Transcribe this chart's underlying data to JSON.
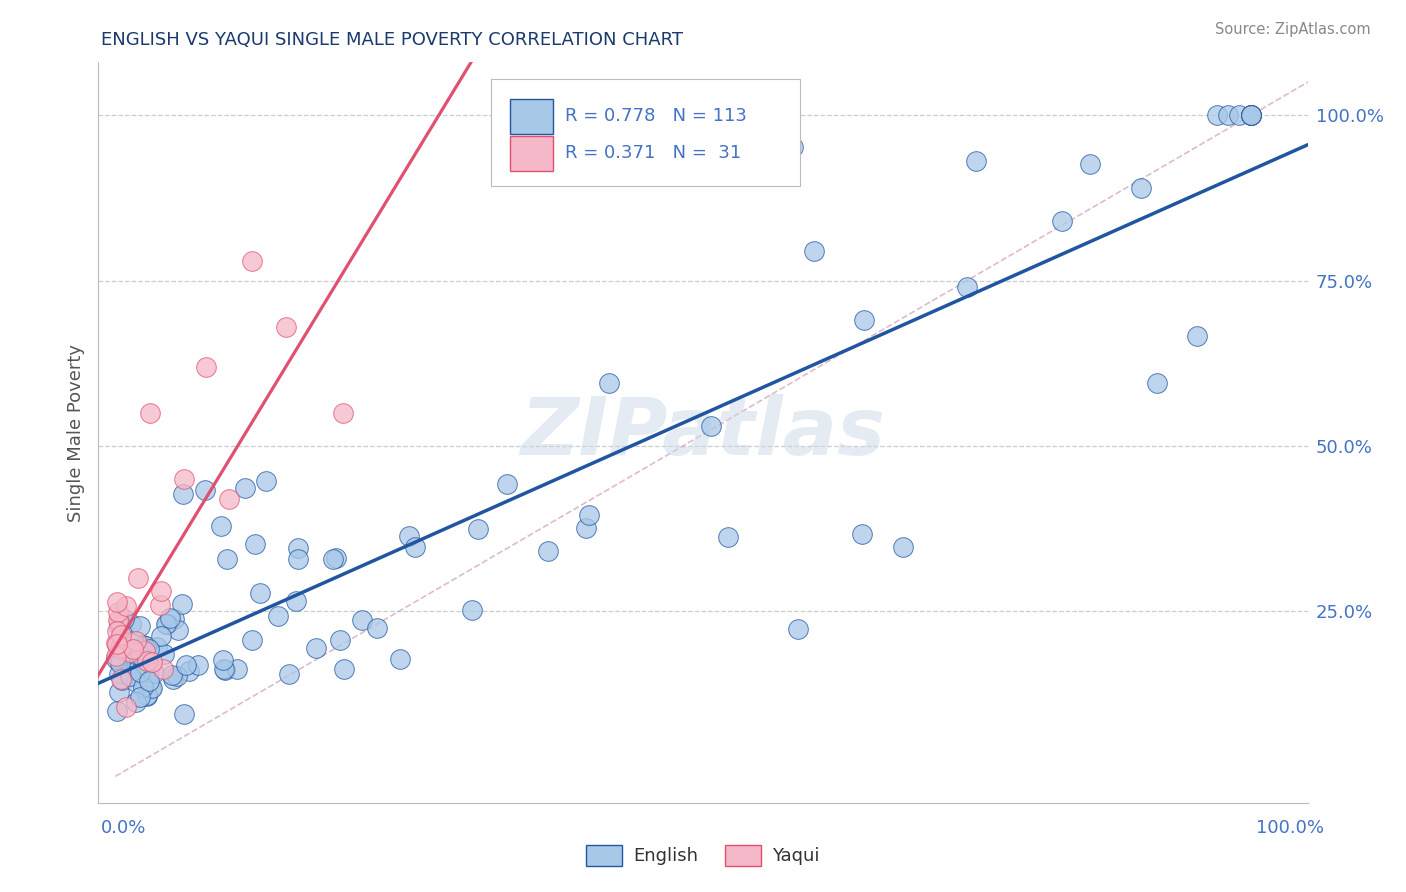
{
  "title": "ENGLISH VS YAQUI SINGLE MALE POVERTY CORRELATION CHART",
  "source": "Source: ZipAtlas.com",
  "ylabel": "Single Male Poverty",
  "title_color": "#1a3a6e",
  "source_color": "#888888",
  "tick_color": "#4472c4",
  "english_color": "#a8c8e8",
  "yaqui_color": "#f4b8c8",
  "english_line_color": "#2255a0",
  "yaqui_line_color": "#e05070",
  "english_R": 0.778,
  "english_N": 113,
  "yaqui_R": 0.371,
  "yaqui_N": 31,
  "ytick_vals": [
    0.0,
    0.25,
    0.5,
    0.75,
    1.0
  ],
  "ytick_labels": [
    "",
    "25.0%",
    "50.0%",
    "75.0%",
    "100.0%"
  ],
  "watermark": "ZIPatlas",
  "legend_english": "English",
  "legend_yaqui": "Yaqui"
}
